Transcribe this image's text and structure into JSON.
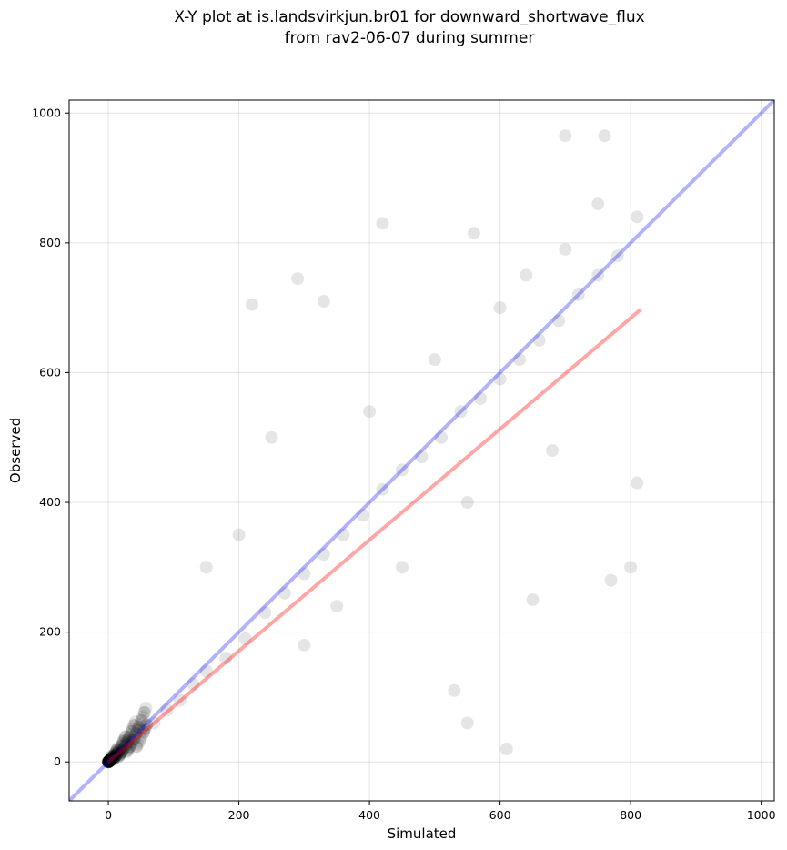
{
  "chart_data": {
    "type": "scatter",
    "title_line1": "X-Y plot at is.landsvirkjun.br01 for downward_shortwave_flux",
    "title_line2": "from rav2-06-07 during summer",
    "xlabel": "Simulated",
    "ylabel": "Observed",
    "xlim": [
      -60,
      1020
    ],
    "ylim": [
      -60,
      1020
    ],
    "xticks": [
      0,
      200,
      400,
      600,
      800,
      1000
    ],
    "yticks": [
      0,
      200,
      400,
      600,
      800,
      1000
    ],
    "grid": true,
    "point_color": "#000000",
    "point_alpha": 0.1,
    "identity_line": {
      "x": [
        -60,
        1020
      ],
      "y": [
        -60,
        1020
      ],
      "color": "#0000ff",
      "alpha": 0.3
    },
    "fit_line": {
      "x": [
        0,
        815
      ],
      "y": [
        0,
        697
      ],
      "color": "#ff0000",
      "alpha": 0.35
    },
    "sample_points": {
      "x": [
        10,
        20,
        30,
        40,
        55,
        70,
        90,
        110,
        130,
        150,
        180,
        210,
        240,
        270,
        300,
        330,
        360,
        390,
        420,
        450,
        480,
        510,
        540,
        570,
        600,
        630,
        660,
        690,
        720,
        750,
        780,
        810,
        150,
        200,
        250,
        300,
        350,
        400,
        450,
        500,
        550,
        600,
        650,
        700,
        750,
        800,
        220,
        330,
        420,
        560,
        640,
        700,
        760,
        290,
        550,
        610,
        680,
        530,
        810,
        770
      ],
      "y": [
        8,
        15,
        28,
        35,
        50,
        60,
        80,
        95,
        120,
        140,
        160,
        190,
        230,
        260,
        290,
        320,
        350,
        380,
        420,
        450,
        470,
        500,
        540,
        560,
        590,
        620,
        650,
        680,
        720,
        750,
        780,
        840,
        300,
        350,
        500,
        180,
        240,
        540,
        300,
        620,
        400,
        700,
        250,
        790,
        860,
        300,
        705,
        710,
        830,
        815,
        750,
        965,
        965,
        745,
        60,
        20,
        480,
        110,
        430,
        280
      ]
    }
  }
}
